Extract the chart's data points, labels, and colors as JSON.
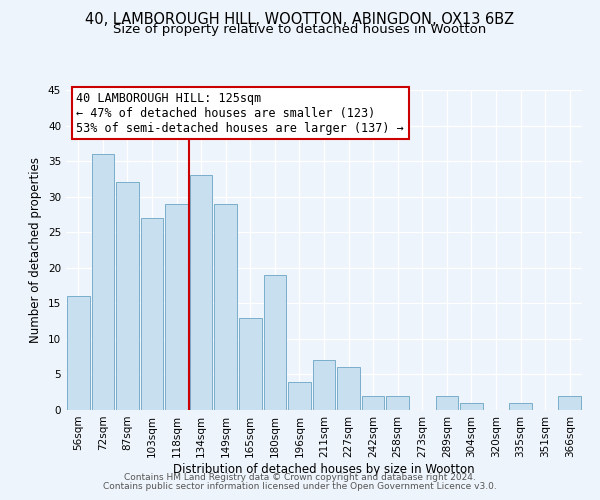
{
  "title": "40, LAMBOROUGH HILL, WOOTTON, ABINGDON, OX13 6BZ",
  "subtitle": "Size of property relative to detached houses in Wootton",
  "xlabel": "Distribution of detached houses by size in Wootton",
  "ylabel": "Number of detached properties",
  "bar_labels": [
    "56sqm",
    "72sqm",
    "87sqm",
    "103sqm",
    "118sqm",
    "134sqm",
    "149sqm",
    "165sqm",
    "180sqm",
    "196sqm",
    "211sqm",
    "227sqm",
    "242sqm",
    "258sqm",
    "273sqm",
    "289sqm",
    "304sqm",
    "320sqm",
    "335sqm",
    "351sqm",
    "366sqm"
  ],
  "bar_values": [
    16,
    36,
    32,
    27,
    29,
    33,
    29,
    13,
    19,
    4,
    7,
    6,
    2,
    2,
    0,
    2,
    1,
    0,
    1,
    0,
    2
  ],
  "bar_color": "#c8dff0",
  "bar_edge_color": "#7aaecb",
  "vline_color": "#cc0000",
  "vline_x": 4.5,
  "ylim": [
    0,
    45
  ],
  "yticks": [
    0,
    5,
    10,
    15,
    20,
    25,
    30,
    35,
    40,
    45
  ],
  "annotation_title": "40 LAMBOROUGH HILL: 125sqm",
  "annotation_line1": "← 47% of detached houses are smaller (123)",
  "annotation_line2": "53% of semi-detached houses are larger (137) →",
  "annotation_box_color": "#ffffff",
  "annotation_box_edge": "#cc0000",
  "footer_line1": "Contains HM Land Registry data © Crown copyright and database right 2024.",
  "footer_line2": "Contains public sector information licensed under the Open Government Licence v3.0.",
  "background_color": "#eef4fb",
  "grid_color": "#ffffff",
  "title_fontsize": 10.5,
  "subtitle_fontsize": 9.5,
  "axis_label_fontsize": 8.5,
  "tick_fontsize": 7.5,
  "annotation_fontsize": 8.5,
  "footer_fontsize": 6.5
}
